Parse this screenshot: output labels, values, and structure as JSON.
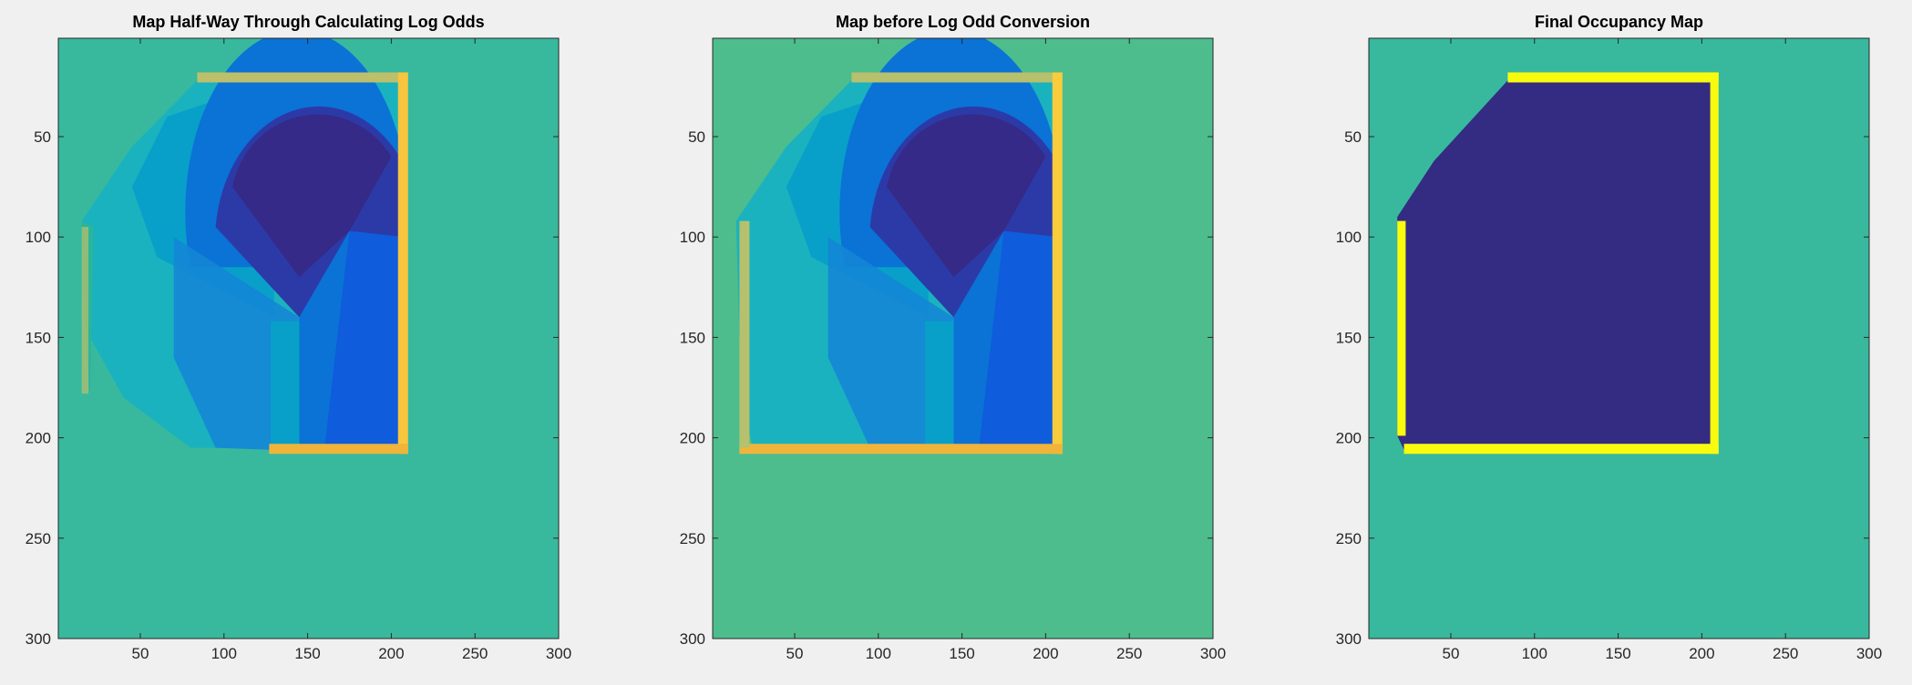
{
  "figure": {
    "background": "#f0f0f0"
  },
  "chart_data": [
    {
      "type": "heatmap",
      "title": "Map Half-Way Through Calculating Log Odds",
      "xlabel": "",
      "ylabel": "",
      "xlim": [
        1,
        300
      ],
      "ylim": [
        1,
        300
      ],
      "y_reversed": true,
      "x_ticks": [
        50,
        100,
        150,
        200,
        250,
        300
      ],
      "y_ticks": [
        50,
        100,
        150,
        200,
        250,
        300
      ],
      "grid": false,
      "colormap": "parula",
      "background_color": "#38b99e",
      "room": {
        "x_range": [
          127,
          208
        ],
        "y_range": [
          22,
          208
        ],
        "wall_colors": [
          "#bdbf6a",
          "#f0b43a",
          "#f7c63e"
        ]
      },
      "free_space_colors": [
        "#352a87",
        "#2c3aa8",
        "#0f5cdd",
        "#0b72d6",
        "#1486d5",
        "#08a0c9",
        "#1ab2be"
      ],
      "value_range": [
        0,
        1
      ]
    },
    {
      "type": "heatmap",
      "title": "Map before Log Odd Conversion",
      "xlabel": "",
      "ylabel": "",
      "xlim": [
        1,
        300
      ],
      "ylim": [
        1,
        300
      ],
      "y_reversed": true,
      "x_ticks": [
        50,
        100,
        150,
        200,
        250,
        300
      ],
      "y_ticks": [
        50,
        100,
        150,
        200,
        250,
        300
      ],
      "grid": false,
      "colormap": "parula",
      "background_color": "#4dbd8e",
      "room": {
        "x_range": [
          17,
          210
        ],
        "y_range": [
          22,
          208
        ],
        "wall_colors": [
          "#b7c06c",
          "#f1b43a",
          "#f9cc3c"
        ]
      },
      "free_space_colors": [
        "#352a87",
        "#2c3aa8",
        "#0f5cdd",
        "#0b72d6",
        "#1486d5",
        "#08a0c9",
        "#1ab2be"
      ],
      "value_range": [
        0,
        1
      ]
    },
    {
      "type": "heatmap",
      "title": "Final Occupancy Map",
      "xlabel": "",
      "ylabel": "",
      "xlim": [
        1,
        300
      ],
      "ylim": [
        1,
        300
      ],
      "y_reversed": true,
      "x_ticks": [
        50,
        100,
        150,
        200,
        250,
        300
      ],
      "y_ticks": [
        50,
        100,
        150,
        200,
        250,
        300
      ],
      "grid": false,
      "colormap": "parula",
      "background_color": "#38b99e",
      "free_color": "#342b83",
      "occupied_color": "#f9fb0e",
      "room_polygon": [
        [
          84,
          22
        ],
        [
          208,
          22
        ],
        [
          208,
          206
        ],
        [
          22,
          206
        ],
        [
          18,
          199
        ],
        [
          18,
          90
        ],
        [
          40,
          62
        ],
        [
          62,
          42
        ],
        [
          84,
          22
        ]
      ],
      "value_range": [
        0,
        1
      ]
    }
  ]
}
